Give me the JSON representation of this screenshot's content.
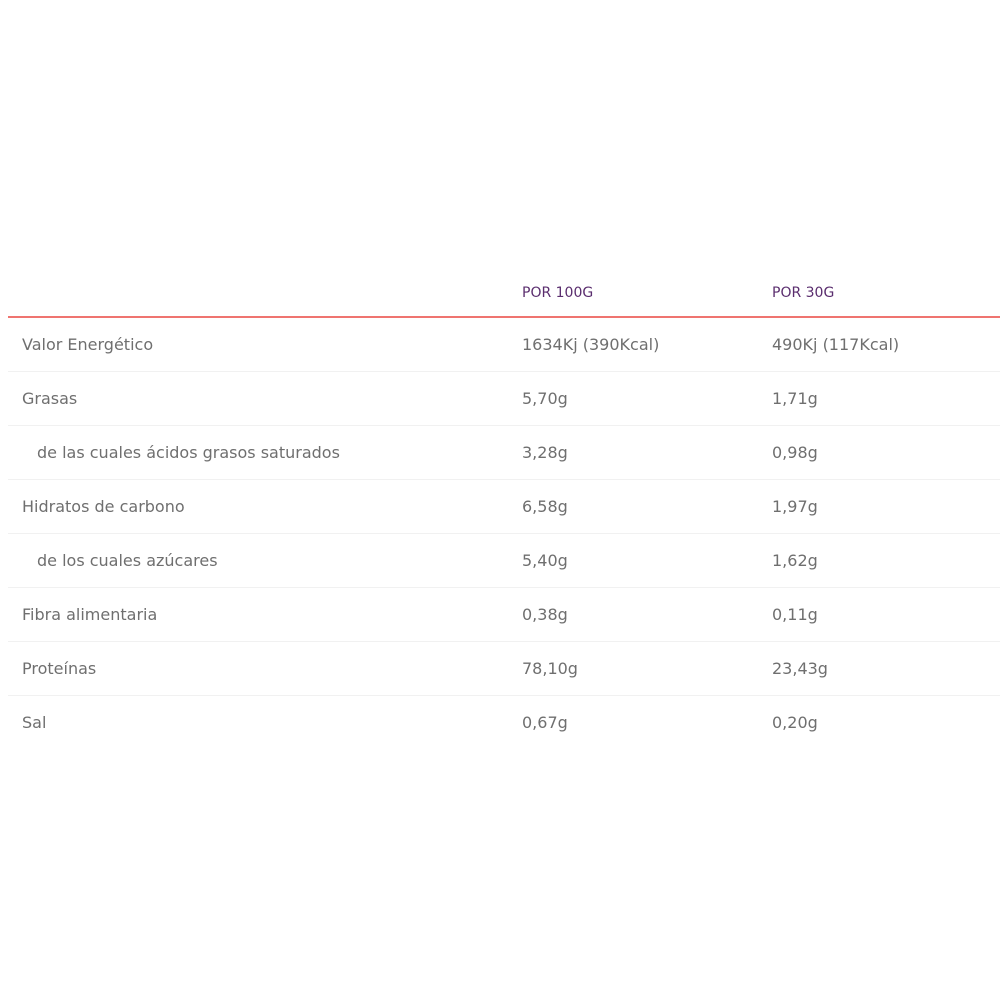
{
  "headers": [
    "",
    "POR 100G",
    "POR 30G"
  ],
  "accent_color": "#ef7470",
  "header_color": "#5a2d6e",
  "rows": [
    {
      "label": "Valor Energético",
      "per100": "1634Kj (390Kcal)",
      "per30": "490Kj (117Kcal)",
      "sub": false
    },
    {
      "label": "Grasas",
      "per100": "5,70g",
      "per30": "1,71g",
      "sub": false
    },
    {
      "label": "de las cuales ácidos grasos saturados",
      "per100": "3,28g",
      "per30": "0,98g",
      "sub": true
    },
    {
      "label": "Hidratos de carbono",
      "per100": "6,58g",
      "per30": "1,97g",
      "sub": false
    },
    {
      "label": "de los cuales azúcares",
      "per100": "5,40g",
      "per30": "1,62g",
      "sub": true
    },
    {
      "label": "Fibra alimentaria",
      "per100": "0,38g",
      "per30": "0,11g",
      "sub": false
    },
    {
      "label": "Proteínas",
      "per100": "78,10g",
      "per30": "23,43g",
      "sub": false
    },
    {
      "label": "Sal",
      "per100": "0,67g",
      "per30": "0,20g",
      "sub": false
    }
  ]
}
